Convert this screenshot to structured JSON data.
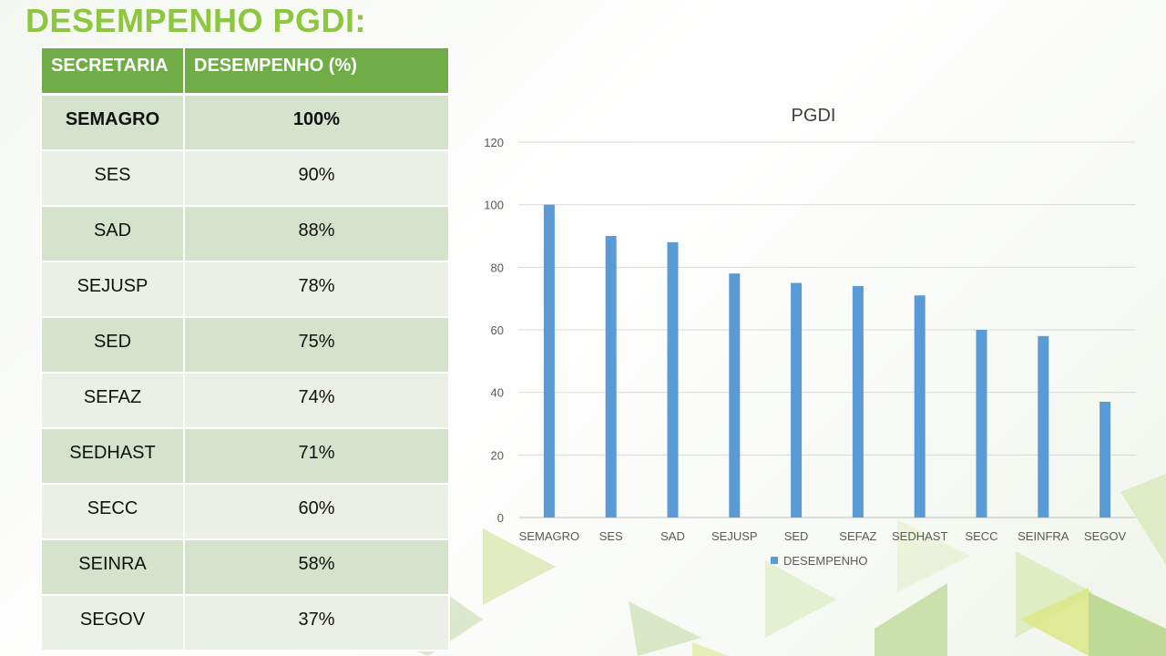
{
  "title": "DESEMPENHO PGDI:",
  "table": {
    "headers": [
      "SECRETARIA",
      "DESEMPENHO (%)"
    ],
    "rows": [
      [
        "SEMAGRO",
        "100%"
      ],
      [
        "SES",
        "90%"
      ],
      [
        "SAD",
        "88%"
      ],
      [
        "SEJUSP",
        "78%"
      ],
      [
        "SED",
        "75%"
      ],
      [
        "SEFAZ",
        "74%"
      ],
      [
        "SEDHAST",
        "71%"
      ],
      [
        "SECC",
        "60%"
      ],
      [
        "SEINRA",
        "58%"
      ],
      [
        "SEGOV",
        "37%"
      ]
    ]
  },
  "colors": {
    "bar": "#5b9bd5",
    "header": "#70ad47",
    "title": "#8dc63f"
  },
  "chart_data": {
    "type": "bar",
    "title": "PGDI",
    "categories": [
      "SEMAGRO",
      "SES",
      "SAD",
      "SEJUSP",
      "SED",
      "SEFAZ",
      "SEDHAST",
      "SECC",
      "SEINFRA",
      "SEGOV"
    ],
    "series": [
      {
        "name": "DESEMPENHO",
        "values": [
          100,
          90,
          88,
          78,
          75,
          74,
          71,
          60,
          58,
          37
        ]
      }
    ],
    "ylim": [
      0,
      120
    ],
    "yticks": [
      0,
      20,
      40,
      60,
      80,
      100,
      120
    ],
    "grid": true,
    "legend": "bottom"
  }
}
